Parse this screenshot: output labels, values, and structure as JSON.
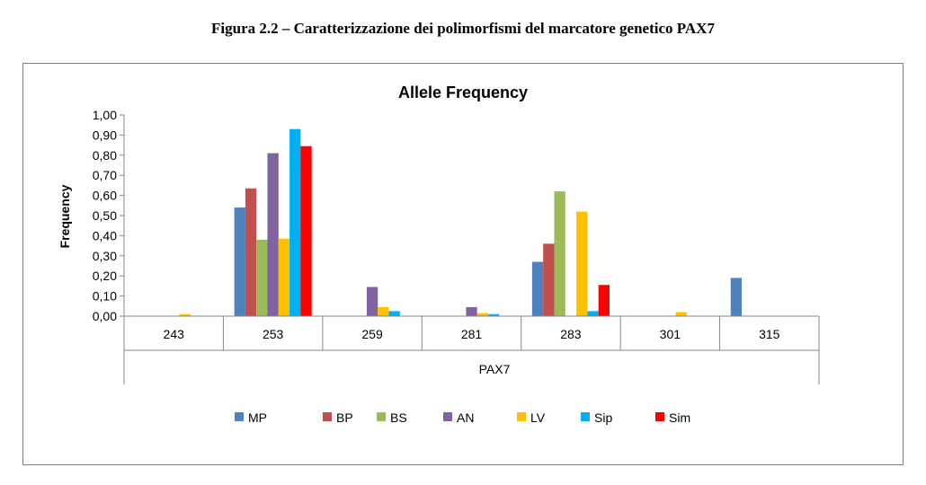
{
  "caption": "Figura 2.2 – Caratterizzazione dei polimorfismi del marcatore genetico PAX7",
  "chart_data": {
    "type": "bar",
    "title": "Allele Frequency",
    "ylabel": "Frequency",
    "xlabel": "PAX7",
    "categories": [
      "243",
      "253",
      "259",
      "281",
      "283",
      "301",
      "315"
    ],
    "ylim": [
      0,
      1
    ],
    "yticks": [
      "0,00",
      "0,10",
      "0,20",
      "0,30",
      "0,40",
      "0,50",
      "0,60",
      "0,70",
      "0,80",
      "0,90",
      "1,00"
    ],
    "grid": false,
    "legend": "bottom",
    "series": [
      {
        "name": "MP",
        "color": "#4f81bd",
        "values": [
          0,
          0.54,
          0,
          0,
          0.27,
          0,
          0.19
        ]
      },
      {
        "name": "BP",
        "color": "#c0504d",
        "values": [
          0,
          0.635,
          0,
          0,
          0.36,
          0,
          0
        ]
      },
      {
        "name": "BS",
        "color": "#9bbb59",
        "values": [
          0,
          0.38,
          0,
          0,
          0.62,
          0,
          0
        ]
      },
      {
        "name": "AN",
        "color": "#8064a2",
        "values": [
          0,
          0.81,
          0.145,
          0.045,
          0,
          0,
          0
        ]
      },
      {
        "name": "LV",
        "color": "#ffc000",
        "values": [
          0.01,
          0.385,
          0.045,
          0.015,
          0.52,
          0.02,
          0
        ]
      },
      {
        "name": "Sip",
        "color": "#00b0f0",
        "values": [
          0,
          0.93,
          0.025,
          0.01,
          0.025,
          0,
          0
        ]
      },
      {
        "name": "Sim",
        "color": "#ff0000",
        "values": [
          0,
          0.845,
          0,
          0,
          0.155,
          0,
          0
        ]
      }
    ]
  }
}
